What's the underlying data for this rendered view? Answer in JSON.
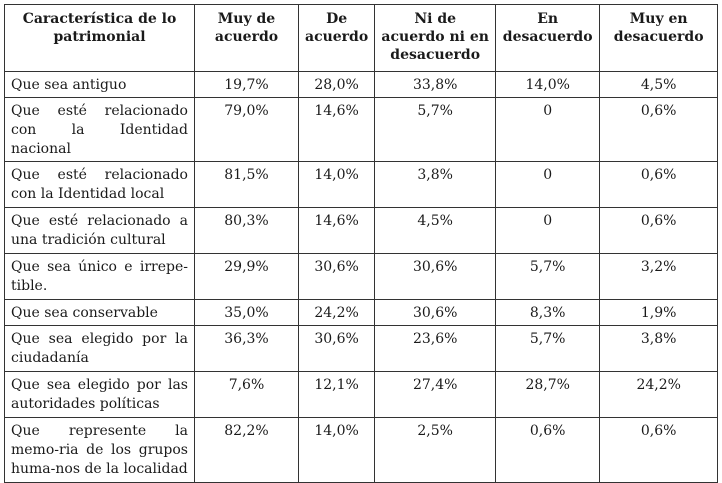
{
  "table": {
    "headers": [
      "Característica de lo patrimonial",
      "Muy de acuerdo",
      "De acuerdo",
      "Ni de acuerdo ni en desacuerdo",
      "En desacuerdo",
      "Muy en desacuerdo"
    ],
    "rows": [
      [
        "Que sea antiguo",
        "19,7%",
        "28,0%",
        "33,8%",
        "14,0%",
        "4,5%"
      ],
      [
        "Que esté relacionado con la Identidad nacional",
        "79,0%",
        "14,6%",
        "5,7%",
        "0",
        "0,6%"
      ],
      [
        "Que esté relacionado con la Identidad local",
        "81,5%",
        "14,0%",
        "3,8%",
        "0",
        "0,6%"
      ],
      [
        "Que esté relacionado a una tradición cultural",
        "80,3%",
        "14,6%",
        "4,5%",
        "0",
        "0,6%"
      ],
      [
        "Que sea único e irrepe-tible.",
        "29,9%",
        "30,6%",
        "30,6%",
        "5,7%",
        "3,2%"
      ],
      [
        "Que sea conservable",
        "35,0%",
        "24,2%",
        "30,6%",
        "8,3%",
        "1,9%"
      ],
      [
        "Que sea elegido por la ciudadanía",
        "36,3%",
        "30,6%",
        "23,6%",
        "5,7%",
        "3,8%"
      ],
      [
        "Que sea elegido por las autoridades políticas",
        "7,6%",
        "12,1%",
        "27,4%",
        "28,7%",
        "24,2%"
      ],
      [
        "Que represente la memo-ria de los grupos huma-nos de la localidad",
        "82,2%",
        "14,0%",
        "2,5%",
        "0,6%",
        "0,6%"
      ]
    ]
  }
}
